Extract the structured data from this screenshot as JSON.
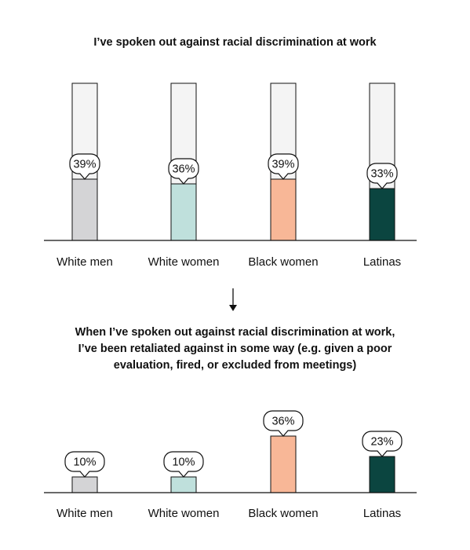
{
  "chart_data": [
    {
      "type": "bar",
      "title": "I’ve spoken out against racial discrimination at work",
      "categories": [
        "White men",
        "White women",
        "Black women",
        "Latinas"
      ],
      "values": [
        39,
        36,
        39,
        33
      ],
      "data_labels": [
        "39%",
        "36%",
        "39%",
        "33%"
      ],
      "ylim": [
        0,
        100
      ],
      "colors": [
        "#d4d4d6",
        "#bfe0dc",
        "#f8b797",
        "#0b4540"
      ],
      "track_color": "#f4f4f4"
    },
    {
      "type": "bar",
      "title_lines": [
        "When I’ve spoken out against racial discrimination at work,",
        "I’ve been retaliated against in some way (e.g. given a poor",
        "evaluation, fired, or excluded from meetings)"
      ],
      "categories": [
        "White men",
        "White women",
        "Black women",
        "Latinas"
      ],
      "values": [
        10,
        10,
        36,
        23
      ],
      "data_labels": [
        "10%",
        "10%",
        "36%",
        "23%"
      ],
      "ylim": [
        0,
        50
      ],
      "colors": [
        "#d4d4d6",
        "#bfe0dc",
        "#f8b797",
        "#0b4540"
      ]
    }
  ],
  "connector": {
    "icon": "down-arrow-icon"
  }
}
